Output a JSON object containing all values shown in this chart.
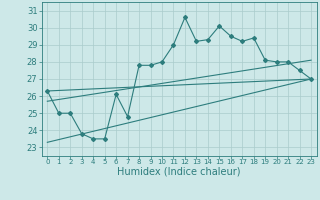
{
  "xlabel": "Humidex (Indice chaleur)",
  "xlim": [
    -0.5,
    23.5
  ],
  "ylim": [
    22.5,
    31.5
  ],
  "xticks": [
    0,
    1,
    2,
    3,
    4,
    5,
    6,
    7,
    8,
    9,
    10,
    11,
    12,
    13,
    14,
    15,
    16,
    17,
    18,
    19,
    20,
    21,
    22,
    23
  ],
  "yticks": [
    23,
    24,
    25,
    26,
    27,
    28,
    29,
    30,
    31
  ],
  "bg_color": "#cde8e8",
  "line_color": "#2d7d7d",
  "grid_color": "#aacccc",
  "main_line": [
    26.3,
    25.0,
    25.0,
    23.8,
    23.5,
    23.5,
    26.1,
    24.8,
    27.8,
    27.8,
    28.0,
    29.0,
    30.6,
    29.2,
    29.3,
    30.1,
    29.5,
    29.2,
    29.4,
    28.1,
    28.0,
    28.0,
    27.5,
    27.0
  ],
  "trend_line1": {
    "x": [
      0,
      23
    ],
    "y": [
      26.3,
      27.0
    ]
  },
  "trend_line2": {
    "x": [
      0,
      23
    ],
    "y": [
      25.7,
      28.1
    ]
  },
  "trend_line3": {
    "x": [
      0,
      23
    ],
    "y": [
      23.3,
      27.0
    ]
  },
  "xtick_fontsize": 5.0,
  "ytick_fontsize": 6.0,
  "xlabel_fontsize": 7.0
}
